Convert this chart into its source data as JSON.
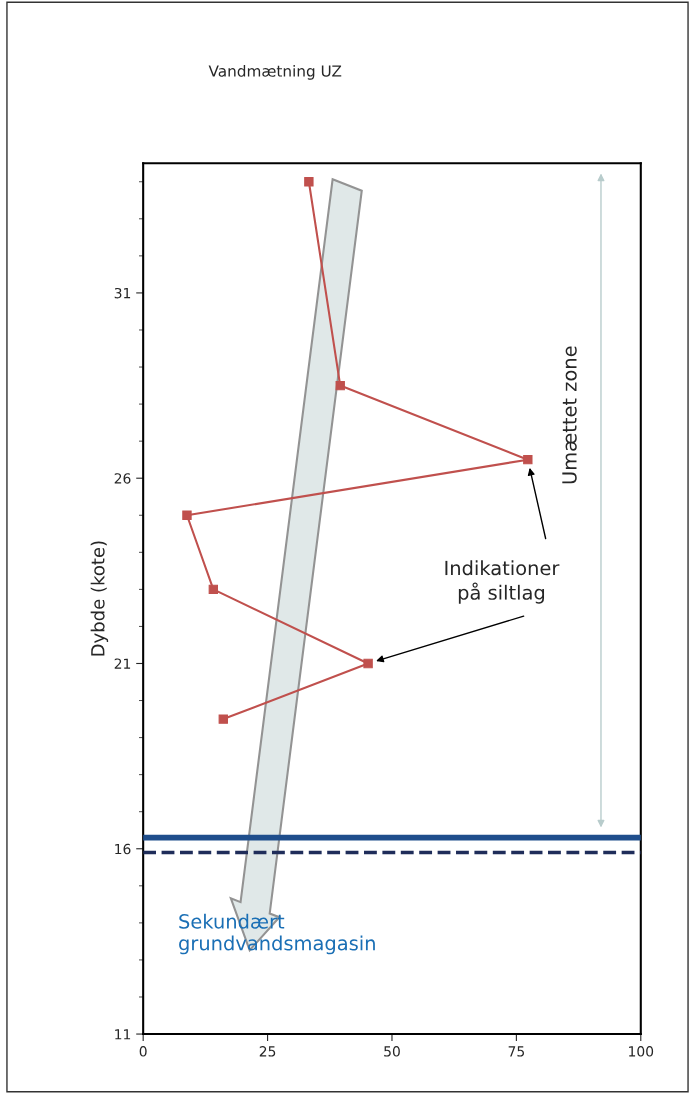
{
  "chart_data": {
    "type": "line",
    "title": "Vandmætning UZ",
    "ylabel": "Dybde (kote)",
    "x": [
      33.3,
      39.6,
      77.3,
      8.8,
      14.1,
      45.2,
      16.1
    ],
    "series": [
      {
        "color": "#c0504d",
        "values": [
          34.0,
          28.5,
          26.5,
          25.0,
          23.0,
          21.0,
          19.5
        ]
      }
    ],
    "marker": "square",
    "line_style": "solid",
    "grid": false,
    "legend": false,
    "xlim": [
      0,
      100
    ],
    "xticks": [
      0,
      25,
      50,
      75,
      100
    ],
    "ylim": [
      11,
      34.5
    ],
    "yticks": [
      11,
      16,
      21,
      26,
      31
    ],
    "ref_lines": [
      {
        "axis": "y",
        "value": 16.3,
        "color": "#1f4e8c",
        "line_style": "solid"
      },
      {
        "axis": "y",
        "value": 15.9,
        "color": "#1f2d5a",
        "line_style": "dashed"
      }
    ],
    "annotations": [
      "Indikationer\npå siltlag",
      "Umættet zone",
      "Sekundært\ngrundvandsmagasin"
    ]
  }
}
